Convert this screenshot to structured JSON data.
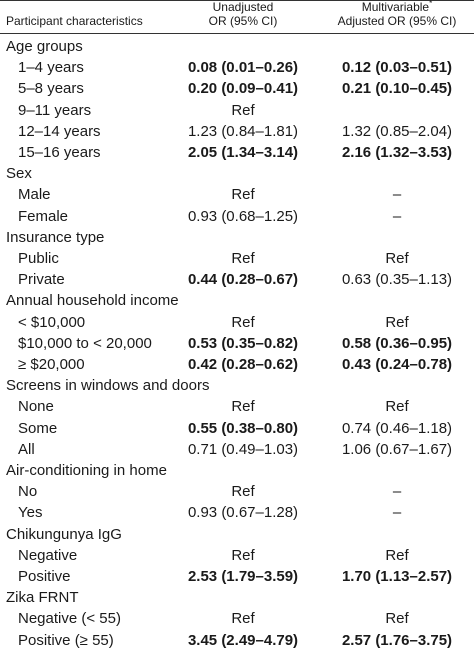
{
  "header": {
    "col0": "Participant characteristics",
    "col1_line1": "Unadjusted",
    "col1_line2": "OR (95% CI)",
    "col2_line1": "Multivariable",
    "col2_sup": "*",
    "col2_line2": "Adjusted OR (95% CI)"
  },
  "rows": [
    {
      "label": "Age groups",
      "sub": false,
      "u": "",
      "ub": false,
      "a": "",
      "ab": false
    },
    {
      "label": "1–4 years",
      "sub": true,
      "u": "0.08 (0.01–0.26)",
      "ub": true,
      "a": "0.12 (0.03–0.51)",
      "ab": true
    },
    {
      "label": "5–8 years",
      "sub": true,
      "u": "0.20 (0.09–0.41)",
      "ub": true,
      "a": "0.21 (0.10–0.45)",
      "ab": true
    },
    {
      "label": "9–11 years",
      "sub": true,
      "u": "Ref",
      "ub": false,
      "a": "",
      "ab": false
    },
    {
      "label": "12–14 years",
      "sub": true,
      "u": "1.23 (0.84–1.81)",
      "ub": false,
      "a": "1.32 (0.85–2.04)",
      "ab": false
    },
    {
      "label": "15–16 years",
      "sub": true,
      "u": "2.05 (1.34–3.14)",
      "ub": true,
      "a": "2.16 (1.32–3.53)",
      "ab": true
    },
    {
      "label": "Sex",
      "sub": false,
      "u": "",
      "ub": false,
      "a": "",
      "ab": false
    },
    {
      "label": "Male",
      "sub": true,
      "u": "Ref",
      "ub": false,
      "a": "–",
      "ab": false
    },
    {
      "label": "Female",
      "sub": true,
      "u": "0.93 (0.68–1.25)",
      "ub": false,
      "a": "–",
      "ab": false
    },
    {
      "label": "Insurance type",
      "sub": false,
      "u": "",
      "ub": false,
      "a": "",
      "ab": false
    },
    {
      "label": "Public",
      "sub": true,
      "u": "Ref",
      "ub": false,
      "a": "Ref",
      "ab": false
    },
    {
      "label": "Private",
      "sub": true,
      "u": "0.44 (0.28–0.67)",
      "ub": true,
      "a": "0.63 (0.35–1.13)",
      "ab": false
    },
    {
      "label": "Annual household income",
      "sub": false,
      "u": "",
      "ub": false,
      "a": "",
      "ab": false
    },
    {
      "label": "< $10,000",
      "sub": true,
      "u": "Ref",
      "ub": false,
      "a": "Ref",
      "ab": false
    },
    {
      "label": "$10,000 to < 20,000",
      "sub": true,
      "u": "0.53 (0.35–0.82)",
      "ub": true,
      "a": "0.58 (0.36–0.95)",
      "ab": true
    },
    {
      "label": "≥ $20,000",
      "sub": true,
      "u": "0.42 (0.28–0.62)",
      "ub": true,
      "a": "0.43 (0.24–0.78)",
      "ab": true
    },
    {
      "label": "Screens in windows and doors",
      "sub": false,
      "u": "",
      "ub": false,
      "a": "",
      "ab": false
    },
    {
      "label": "None",
      "sub": true,
      "u": "Ref",
      "ub": false,
      "a": "Ref",
      "ab": false
    },
    {
      "label": "Some",
      "sub": true,
      "u": "0.55 (0.38–0.80)",
      "ub": true,
      "a": "0.74 (0.46–1.18)",
      "ab": false
    },
    {
      "label": "All",
      "sub": true,
      "u": "0.71 (0.49–1.03)",
      "ub": false,
      "a": "1.06 (0.67–1.67)",
      "ab": false
    },
    {
      "label": "Air-conditioning in home",
      "sub": false,
      "u": "",
      "ub": false,
      "a": "",
      "ab": false
    },
    {
      "label": "No",
      "sub": true,
      "u": "Ref",
      "ub": false,
      "a": "–",
      "ab": false
    },
    {
      "label": "Yes",
      "sub": true,
      "u": "0.93 (0.67–1.28)",
      "ub": false,
      "a": "–",
      "ab": false
    },
    {
      "label": "Chikungunya IgG",
      "sub": false,
      "u": "",
      "ub": false,
      "a": "",
      "ab": false
    },
    {
      "label": "Negative",
      "sub": true,
      "u": "Ref",
      "ub": false,
      "a": "Ref",
      "ab": false
    },
    {
      "label": "Positive",
      "sub": true,
      "u": "2.53 (1.79–3.59)",
      "ub": true,
      "a": "1.70 (1.13–2.57)",
      "ab": true
    },
    {
      "label": "Zika FRNT",
      "sub": false,
      "u": "",
      "ub": false,
      "a": "",
      "ab": false
    },
    {
      "label": "Negative (< 55)",
      "sub": true,
      "u": "Ref",
      "ub": false,
      "a": "Ref",
      "ab": false
    },
    {
      "label": "Positive (≥ 55)",
      "sub": true,
      "u": "3.45 (2.49–4.79)",
      "ub": true,
      "a": "2.57 (1.76–3.75)",
      "ab": true
    }
  ]
}
